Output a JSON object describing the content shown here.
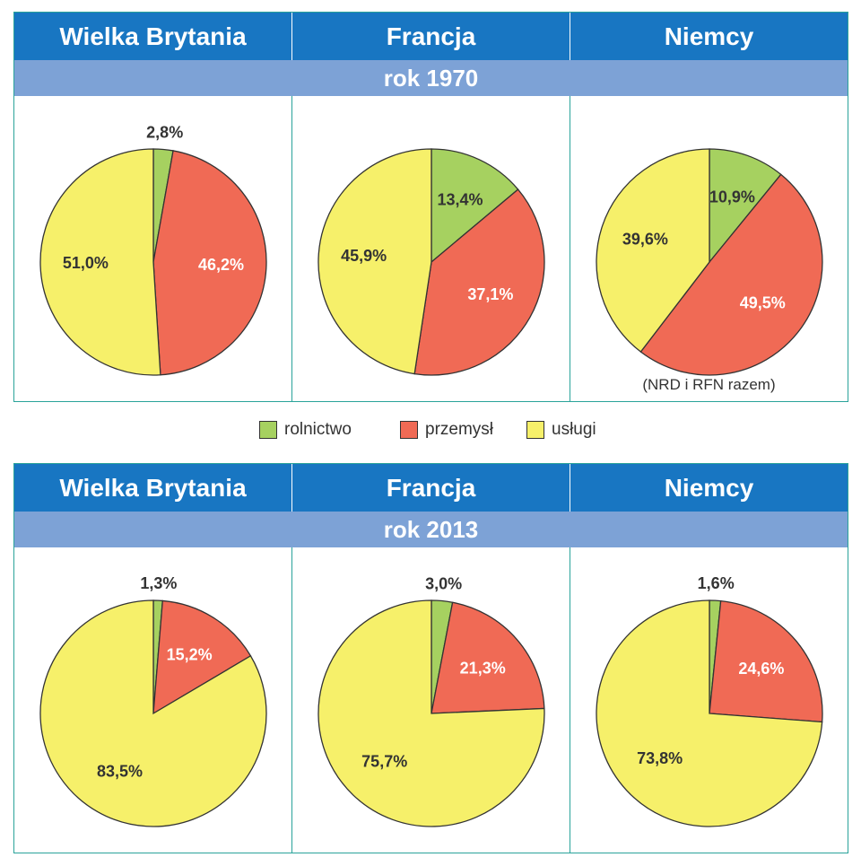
{
  "colors": {
    "header": "#1876c2",
    "year_bar": "#7da2d6",
    "border": "#2aa39a",
    "rolnictwo": "#a6d160",
    "przemysl": "#f06a55",
    "uslugi": "#f6f06a"
  },
  "legend": {
    "items": [
      {
        "label": "rolnictwo",
        "color_key": "rolnictwo"
      },
      {
        "label": "przemysł",
        "color_key": "przemysl"
      },
      {
        "label": "usługi",
        "color_key": "uslugi"
      }
    ]
  },
  "panels": [
    {
      "year_label": "rok 1970",
      "countries": [
        "Wielka Brytania",
        "Francja",
        "Niemcy"
      ],
      "note": "(NRD i RFN razem)"
    },
    {
      "year_label": "rok 2013",
      "countries": [
        "Wielka Brytania",
        "Francja",
        "Niemcy"
      ],
      "note": ""
    }
  ],
  "chart_data": [
    {
      "type": "pie",
      "country": "Wielka Brytania",
      "year": "rok 1970",
      "slices": [
        {
          "category": "rolnictwo",
          "value": 2.8,
          "label": "2,8%"
        },
        {
          "category": "przemysl",
          "value": 46.2,
          "label": "46,2%"
        },
        {
          "category": "uslugi",
          "value": 51.0,
          "label": "51,0%"
        }
      ]
    },
    {
      "type": "pie",
      "country": "Francja",
      "year": "rok 1970",
      "slices": [
        {
          "category": "rolnictwo",
          "value": 13.4,
          "label": "13,4%"
        },
        {
          "category": "przemysl",
          "value": 37.1,
          "label": "37,1%"
        },
        {
          "category": "uslugi",
          "value": 45.9,
          "label": "45,9%"
        }
      ]
    },
    {
      "type": "pie",
      "country": "Niemcy",
      "year": "rok 1970",
      "slices": [
        {
          "category": "rolnictwo",
          "value": 10.9,
          "label": "10,9%"
        },
        {
          "category": "przemysl",
          "value": 49.5,
          "label": "49,5%"
        },
        {
          "category": "uslugi",
          "value": 39.6,
          "label": "39,6%"
        }
      ]
    },
    {
      "type": "pie",
      "country": "Wielka Brytania",
      "year": "rok 2013",
      "slices": [
        {
          "category": "rolnictwo",
          "value": 1.3,
          "label": "1,3%"
        },
        {
          "category": "przemysl",
          "value": 15.2,
          "label": "15,2%"
        },
        {
          "category": "uslugi",
          "value": 83.5,
          "label": "83,5%"
        }
      ]
    },
    {
      "type": "pie",
      "country": "Francja",
      "year": "rok 2013",
      "slices": [
        {
          "category": "rolnictwo",
          "value": 3.0,
          "label": "3,0%"
        },
        {
          "category": "przemysl",
          "value": 21.3,
          "label": "21,3%"
        },
        {
          "category": "uslugi",
          "value": 75.7,
          "label": "75,7%"
        }
      ]
    },
    {
      "type": "pie",
      "country": "Niemcy",
      "year": "rok 2013",
      "slices": [
        {
          "category": "rolnictwo",
          "value": 1.6,
          "label": "1,6%"
        },
        {
          "category": "przemysl",
          "value": 24.6,
          "label": "24,6%"
        },
        {
          "category": "uslugi",
          "value": 73.8,
          "label": "73,8%"
        }
      ]
    }
  ]
}
